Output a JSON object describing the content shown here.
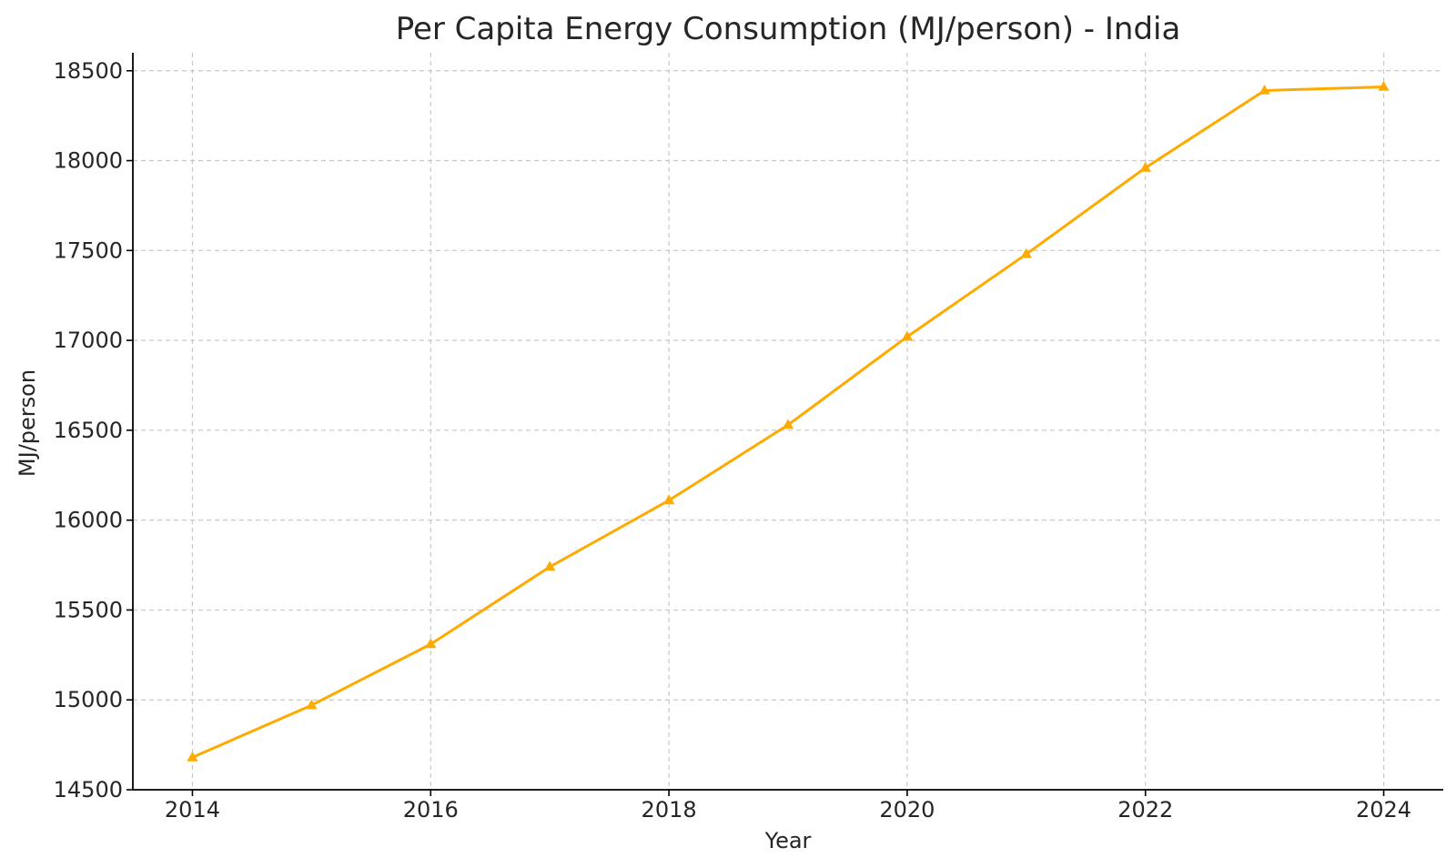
{
  "chart_data": {
    "type": "line",
    "title": "Per Capita Energy Consumption (MJ/person) - India",
    "xlabel": "Year",
    "ylabel": "MJ/person",
    "x": [
      2014,
      2015,
      2016,
      2017,
      2018,
      2019,
      2020,
      2021,
      2022,
      2023,
      2024
    ],
    "series": [
      {
        "values": [
          14680,
          14970,
          15310,
          15740,
          16110,
          16530,
          17020,
          17480,
          17960,
          18390,
          18410
        ],
        "color": "#FFAA00",
        "marker": "triangle"
      }
    ],
    "xlim": [
      2013.5,
      2024.5
    ],
    "ylim": [
      14500,
      18600
    ],
    "xticks": [
      2014,
      2016,
      2018,
      2020,
      2022,
      2024
    ],
    "yticks": [
      14500,
      15000,
      15500,
      16000,
      16500,
      17000,
      17500,
      18000,
      18500
    ],
    "grid": true
  }
}
